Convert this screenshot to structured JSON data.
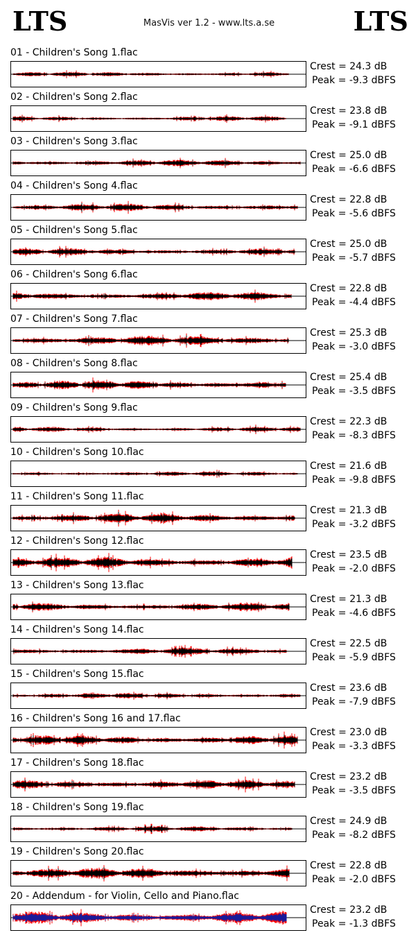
{
  "header": {
    "logo_left": "LTS",
    "logo_right": "LTS",
    "center_text": "MasVis ver 1.2 - www.lts.a.se"
  },
  "colors": {
    "wave_dark": "#000000",
    "wave_peak": "#ff0000",
    "wave_alt": "#1a1a99"
  },
  "chart_data": {
    "type": "table",
    "series": [
      {
        "name": "01 - Children's Song 1.flac",
        "crest": "Crest = 24.3 dB",
        "peak": "Peak = -9.3 dBFS",
        "crest_db": 24.3,
        "peak_dbfs": -9.3
      },
      {
        "name": "02 - Children's Song 2.flac",
        "crest": "Crest = 23.8 dB",
        "peak": "Peak = -9.1 dBFS",
        "crest_db": 23.8,
        "peak_dbfs": -9.1
      },
      {
        "name": "03 - Children's Song 3.flac",
        "crest": "Crest = 25.0 dB",
        "peak": "Peak = -6.6 dBFS",
        "crest_db": 25.0,
        "peak_dbfs": -6.6
      },
      {
        "name": "04 - Children's Song 4.flac",
        "crest": "Crest = 22.8 dB",
        "peak": "Peak = -5.6 dBFS",
        "crest_db": 22.8,
        "peak_dbfs": -5.6
      },
      {
        "name": "05 - Children's Song 5.flac",
        "crest": "Crest = 25.0 dB",
        "peak": "Peak = -5.7 dBFS",
        "crest_db": 25.0,
        "peak_dbfs": -5.7
      },
      {
        "name": "06 - Children's Song 6.flac",
        "crest": "Crest = 22.8 dB",
        "peak": "Peak = -4.4 dBFS",
        "crest_db": 22.8,
        "peak_dbfs": -4.4
      },
      {
        "name": "07 - Children's Song 7.flac",
        "crest": "Crest = 25.3 dB",
        "peak": "Peak = -3.0 dBFS",
        "crest_db": 25.3,
        "peak_dbfs": -3.0
      },
      {
        "name": "08 - Children's Song 8.flac",
        "crest": "Crest = 25.4 dB",
        "peak": "Peak = -3.5 dBFS",
        "crest_db": 25.4,
        "peak_dbfs": -3.5
      },
      {
        "name": "09 - Children's Song 9.flac",
        "crest": "Crest = 22.3 dB",
        "peak": "Peak = -8.3 dBFS",
        "crest_db": 22.3,
        "peak_dbfs": -8.3
      },
      {
        "name": "10 - Children's Song 10.flac",
        "crest": "Crest = 21.6 dB",
        "peak": "Peak = -9.8 dBFS",
        "crest_db": 21.6,
        "peak_dbfs": -9.8
      },
      {
        "name": "11 - Children's Song 11.flac",
        "crest": "Crest = 21.3 dB",
        "peak": "Peak = -3.2 dBFS",
        "crest_db": 21.3,
        "peak_dbfs": -3.2
      },
      {
        "name": "12 - Children's Song 12.flac",
        "crest": "Crest = 23.5 dB",
        "peak": "Peak = -2.0 dBFS",
        "crest_db": 23.5,
        "peak_dbfs": -2.0
      },
      {
        "name": "13 - Children's Song 13.flac",
        "crest": "Crest = 21.3 dB",
        "peak": "Peak = -4.6 dBFS",
        "crest_db": 21.3,
        "peak_dbfs": -4.6
      },
      {
        "name": "14 - Children's Song 14.flac",
        "crest": "Crest = 22.5 dB",
        "peak": "Peak = -5.9 dBFS",
        "crest_db": 22.5,
        "peak_dbfs": -5.9
      },
      {
        "name": "15 - Children's Song 15.flac",
        "crest": "Crest = 23.6 dB",
        "peak": "Peak = -7.9 dBFS",
        "crest_db": 23.6,
        "peak_dbfs": -7.9
      },
      {
        "name": "16 - Children's Song 16 and 17.flac",
        "crest": "Crest = 23.0 dB",
        "peak": "Peak = -3.3 dBFS",
        "crest_db": 23.0,
        "peak_dbfs": -3.3
      },
      {
        "name": "17 - Children's Song 18.flac",
        "crest": "Crest = 23.2 dB",
        "peak": "Peak = -3.5 dBFS",
        "crest_db": 23.2,
        "peak_dbfs": -3.5
      },
      {
        "name": "18 - Children's Song 19.flac",
        "crest": "Crest = 24.9 dB",
        "peak": "Peak = -8.2 dBFS",
        "crest_db": 24.9,
        "peak_dbfs": -8.2
      },
      {
        "name": "19 - Children's Song 20.flac",
        "crest": "Crest = 22.8 dB",
        "peak": "Peak = -2.0 dBFS",
        "crest_db": 22.8,
        "peak_dbfs": -2.0
      },
      {
        "name": "20 - Addendum - for Violin, Cello and Piano.flac",
        "crest": "Crest = 23.2 dB",
        "peak": "Peak = -1.3 dBFS",
        "crest_db": 23.2,
        "peak_dbfs": -1.3
      }
    ]
  }
}
